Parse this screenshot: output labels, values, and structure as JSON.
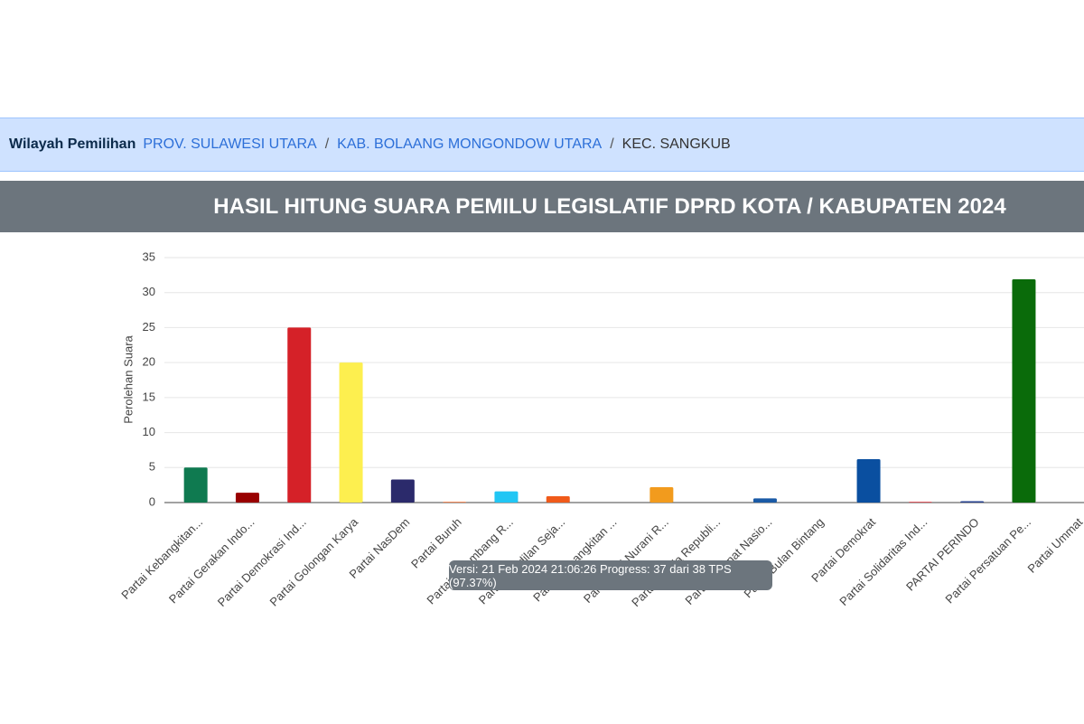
{
  "breadcrumb": {
    "label": "Wilayah Pemilihan",
    "separator": "/",
    "items": [
      "PROV. SULAWESI UTARA",
      "KAB. BOLAANG MONGONDOW UTARA",
      "KEC. SANGKUB"
    ]
  },
  "chart_data": {
    "type": "bar",
    "title": "HASIL HITUNG SUARA PEMILU LEGISLATIF DPRD KOTA / KABUPATEN 2024",
    "ylabel": "Perolehan Suara",
    "categories": [
      "Partai Kebangkitan...",
      "Partai Gerakan Indo...",
      "Partai Demokrasi Ind...",
      "Partai Golongan Karya",
      "Partai NasDem",
      "Partai Buruh",
      "Partai Gelombang R...",
      "Partai Keadilan Seja...",
      "Partai Kebangkitan ...",
      "Partai Hati Nurani R...",
      "Partai Garda Republi...",
      "Partai Amanat Nasio...",
      "Partai Bulan Bintang",
      "Partai Demokrat",
      "Partai Solidaritas Ind...",
      "PARTAI PERINDO",
      "Partai Persatuan Pe...",
      "Partai Ummat"
    ],
    "values": [
      5,
      1.4,
      25,
      20,
      3.3,
      0.1,
      1.6,
      0.9,
      0,
      2.2,
      0,
      0.6,
      0,
      6.2,
      0.1,
      0.2,
      31.9,
      0
    ],
    "colors": [
      "#0f7a50",
      "#990000",
      "#d52128",
      "#fdef4f",
      "#2b2a6b",
      "#f26522",
      "#21c6f4",
      "#f05a1a",
      "#1c6b3a",
      "#f29b1d",
      "#8a1a1a",
      "#1a5aa6",
      "#0b6b2f",
      "#0a4fa0",
      "#d9232d",
      "#25408f",
      "#0a6b0a",
      "#3a5a2a"
    ],
    "ylim": [
      0,
      35
    ],
    "yticks": [
      0,
      5,
      10,
      15,
      20,
      25,
      30,
      35
    ],
    "grid": true
  },
  "tooltip": "Versi: 21 Feb 2024 21:06:26 Progress: 37 dari 38 TPS (97.37%)"
}
